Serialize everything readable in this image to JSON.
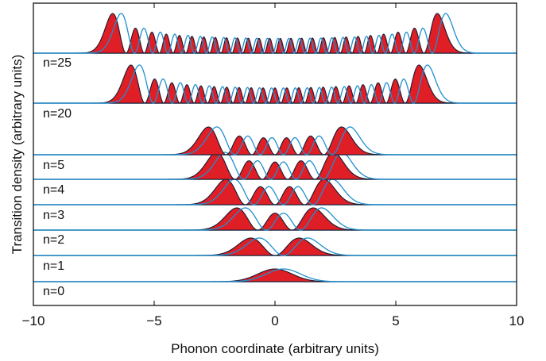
{
  "chart_data": {
    "type": "area",
    "title": "",
    "xlabel": "Phonon coordinate (arbitrary units)",
    "ylabel": "Transition density (arbitrary units)",
    "xlim": [
      -10,
      10
    ],
    "xticks": [
      -10,
      -5,
      0,
      5,
      10
    ],
    "xtick_labels": [
      "−10",
      "−5",
      "0",
      "5",
      "10"
    ],
    "grid": false,
    "legend": "none",
    "fill_color": "#e01e26",
    "outline_color": "#1a1a2e",
    "curve_color": "#1f8fd0",
    "baseline_color": "#1f5a8a",
    "series": [
      {
        "name": "n=0",
        "n": 0,
        "shift": 0.35
      },
      {
        "name": "n=1",
        "n": 1,
        "shift": 0.35
      },
      {
        "name": "n=2",
        "n": 2,
        "shift": 0.35
      },
      {
        "name": "n=3",
        "n": 3,
        "shift": 0.35
      },
      {
        "name": "n=4",
        "n": 4,
        "shift": 0.35
      },
      {
        "name": "n=5",
        "n": 5,
        "shift": 0.35
      },
      {
        "name": "n=20",
        "n": 20,
        "shift": 0.35
      },
      {
        "name": "n=25",
        "n": 25,
        "shift": 0.35
      }
    ]
  }
}
